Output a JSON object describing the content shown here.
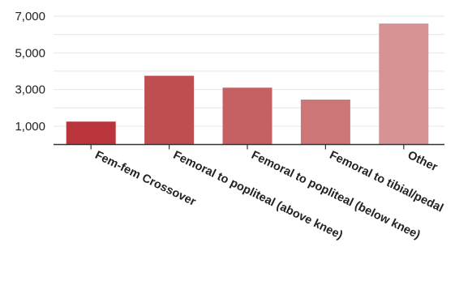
{
  "chart_data": {
    "type": "bar",
    "title": "",
    "xlabel": "",
    "ylabel": "",
    "categories": [
      "Fem-fem Crossover",
      "Femoral to popliteal (above knee)",
      "Femoral to popliteal (below knee)",
      "Femoral to tibial/pedal",
      "Other"
    ],
    "values": [
      1250,
      3750,
      3100,
      2450,
      6600
    ],
    "ylim": [
      0,
      7000
    ],
    "y_ticks": [
      1000,
      3000,
      5000,
      7000
    ],
    "y_tick_labels": [
      "1,000",
      "3,000",
      "5,000",
      "7,000"
    ],
    "grid": true,
    "legend": "none",
    "bar_colors": [
      "#b9353b",
      "#bf4e51",
      "#c66163",
      "#cd7678",
      "#d99294"
    ]
  }
}
